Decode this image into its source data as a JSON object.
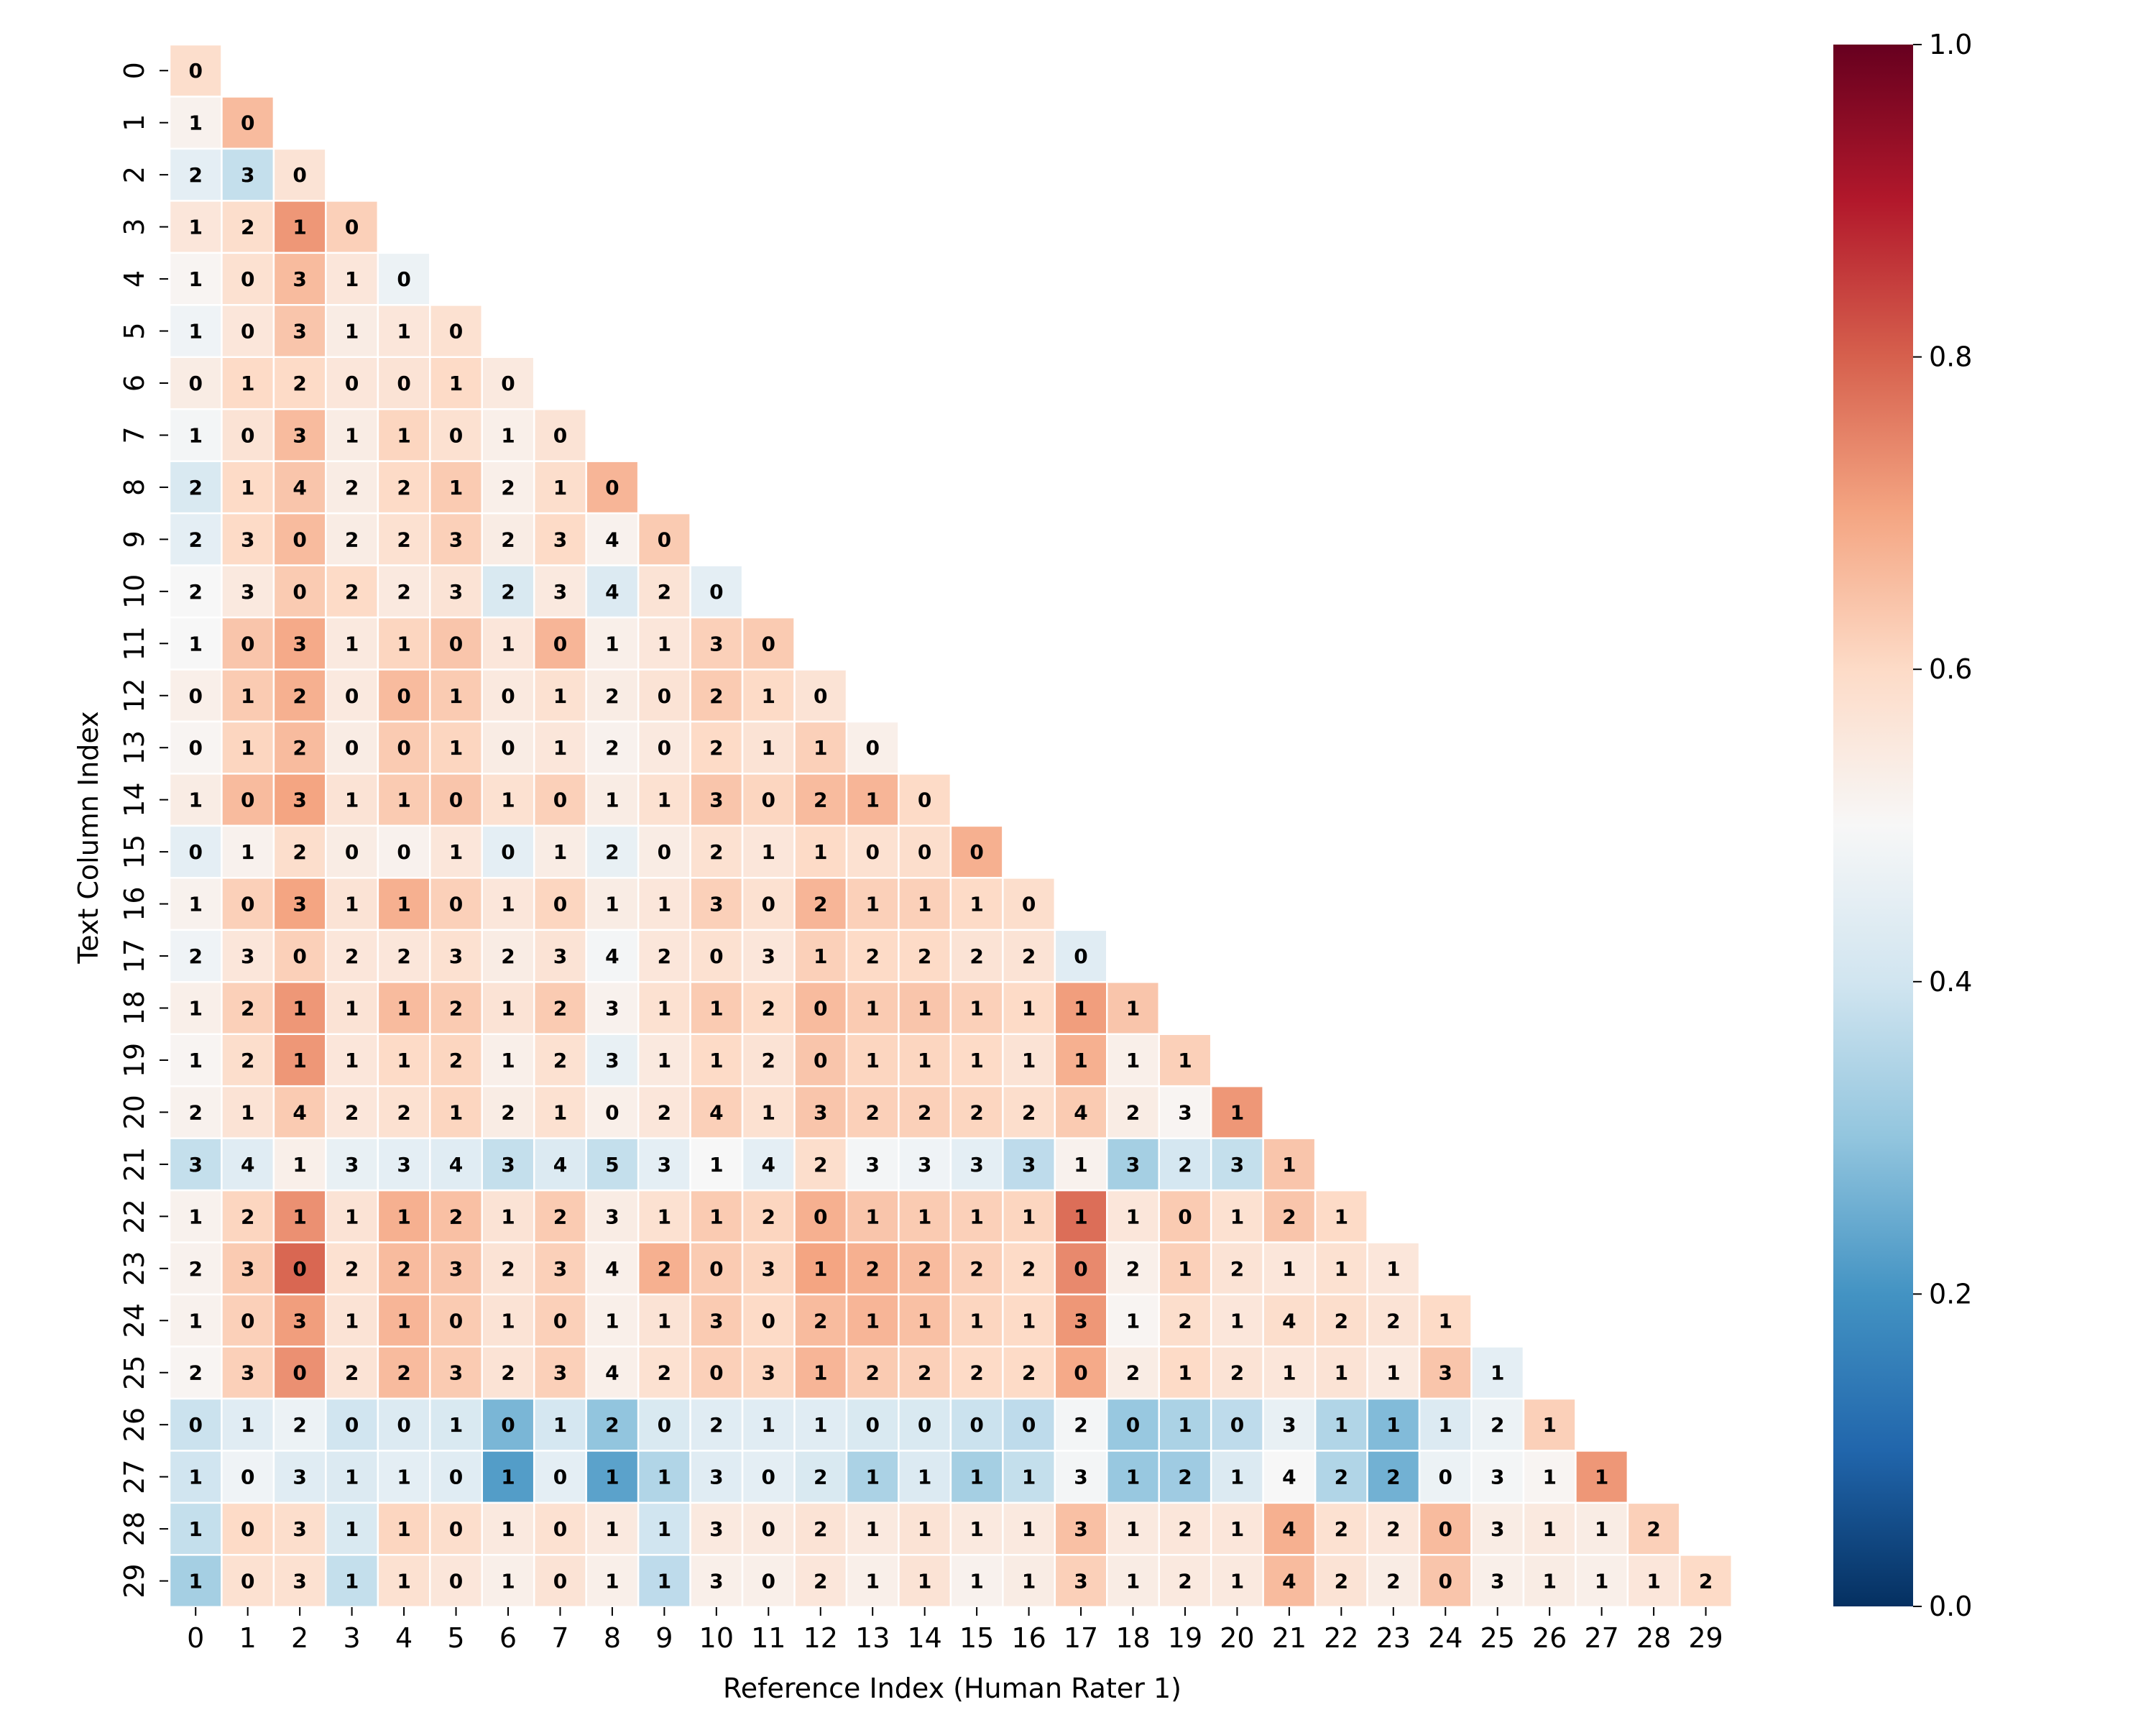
{
  "chart_data": {
    "type": "heatmap",
    "title": "",
    "xlabel": "Reference Index (Human Rater 1)",
    "ylabel": "Text Column Index",
    "x_tick_labels": [
      "0",
      "1",
      "2",
      "3",
      "4",
      "5",
      "6",
      "7",
      "8",
      "9",
      "10",
      "11",
      "12",
      "13",
      "14",
      "15",
      "16",
      "17",
      "18",
      "19",
      "20",
      "21",
      "22",
      "23",
      "24",
      "25",
      "26",
      "27",
      "28",
      "29"
    ],
    "y_tick_labels": [
      "0",
      "1",
      "2",
      "3",
      "4",
      "5",
      "6",
      "7",
      "8",
      "9",
      "10",
      "11",
      "12",
      "13",
      "14",
      "15",
      "16",
      "17",
      "18",
      "19",
      "20",
      "21",
      "22",
      "23",
      "24",
      "25",
      "26",
      "27",
      "28",
      "29"
    ],
    "mask": "upper-triangle",
    "colormap": "RdBu_r",
    "color_range": [
      0.0,
      1.0
    ],
    "colorbar_ticks": [
      "0.0",
      "0.2",
      "0.4",
      "0.6",
      "0.8",
      "1.0"
    ],
    "annotations": [
      [
        0
      ],
      [
        1,
        0
      ],
      [
        2,
        3,
        0
      ],
      [
        1,
        2,
        1,
        0
      ],
      [
        1,
        0,
        3,
        1,
        0
      ],
      [
        1,
        0,
        3,
        1,
        1,
        0
      ],
      [
        0,
        1,
        2,
        0,
        0,
        1,
        0
      ],
      [
        1,
        0,
        3,
        1,
        1,
        0,
        1,
        0
      ],
      [
        2,
        1,
        4,
        2,
        2,
        1,
        2,
        1,
        0
      ],
      [
        2,
        3,
        0,
        2,
        2,
        3,
        2,
        3,
        4,
        0
      ],
      [
        2,
        3,
        0,
        2,
        2,
        3,
        2,
        3,
        4,
        2,
        0
      ],
      [
        1,
        0,
        3,
        1,
        1,
        0,
        1,
        0,
        1,
        1,
        3,
        0
      ],
      [
        0,
        1,
        2,
        0,
        0,
        1,
        0,
        1,
        2,
        0,
        2,
        1,
        0
      ],
      [
        0,
        1,
        2,
        0,
        0,
        1,
        0,
        1,
        2,
        0,
        2,
        1,
        1,
        0
      ],
      [
        1,
        0,
        3,
        1,
        1,
        0,
        1,
        0,
        1,
        1,
        3,
        0,
        2,
        1,
        0
      ],
      [
        0,
        1,
        2,
        0,
        0,
        1,
        0,
        1,
        2,
        0,
        2,
        1,
        1,
        0,
        0,
        0
      ],
      [
        1,
        0,
        3,
        1,
        1,
        0,
        1,
        0,
        1,
        1,
        3,
        0,
        2,
        1,
        1,
        1,
        0
      ],
      [
        2,
        3,
        0,
        2,
        2,
        3,
        2,
        3,
        4,
        2,
        0,
        3,
        1,
        2,
        2,
        2,
        2,
        0
      ],
      [
        1,
        2,
        1,
        1,
        1,
        2,
        1,
        2,
        3,
        1,
        1,
        2,
        0,
        1,
        1,
        1,
        1,
        1,
        1
      ],
      [
        1,
        2,
        1,
        1,
        1,
        2,
        1,
        2,
        3,
        1,
        1,
        2,
        0,
        1,
        1,
        1,
        1,
        1,
        1,
        1
      ],
      [
        2,
        1,
        4,
        2,
        2,
        1,
        2,
        1,
        0,
        2,
        4,
        1,
        3,
        2,
        2,
        2,
        2,
        4,
        2,
        3,
        1
      ],
      [
        3,
        4,
        1,
        3,
        3,
        4,
        3,
        4,
        5,
        3,
        1,
        4,
        2,
        3,
        3,
        3,
        3,
        1,
        3,
        2,
        3,
        1
      ],
      [
        1,
        2,
        1,
        1,
        1,
        2,
        1,
        2,
        3,
        1,
        1,
        2,
        0,
        1,
        1,
        1,
        1,
        1,
        1,
        0,
        1,
        2,
        1
      ],
      [
        2,
        3,
        0,
        2,
        2,
        3,
        2,
        3,
        4,
        2,
        0,
        3,
        1,
        2,
        2,
        2,
        2,
        0,
        2,
        1,
        2,
        1,
        1,
        1
      ],
      [
        1,
        0,
        3,
        1,
        1,
        0,
        1,
        0,
        1,
        1,
        3,
        0,
        2,
        1,
        1,
        1,
        1,
        3,
        1,
        2,
        1,
        4,
        2,
        2,
        1
      ],
      [
        2,
        3,
        0,
        2,
        2,
        3,
        2,
        3,
        4,
        2,
        0,
        3,
        1,
        2,
        2,
        2,
        2,
        0,
        2,
        1,
        2,
        1,
        1,
        1,
        3,
        1
      ],
      [
        0,
        1,
        2,
        0,
        0,
        1,
        0,
        1,
        2,
        0,
        2,
        1,
        1,
        0,
        0,
        0,
        0,
        2,
        0,
        1,
        0,
        3,
        1,
        1,
        1,
        2,
        1
      ],
      [
        1,
        0,
        3,
        1,
        1,
        0,
        1,
        0,
        1,
        1,
        3,
        0,
        2,
        1,
        1,
        1,
        1,
        3,
        1,
        2,
        1,
        4,
        2,
        2,
        0,
        3,
        1,
        1
      ],
      [
        1,
        0,
        3,
        1,
        1,
        0,
        1,
        0,
        1,
        1,
        3,
        0,
        2,
        1,
        1,
        1,
        1,
        3,
        1,
        2,
        1,
        4,
        2,
        2,
        0,
        3,
        1,
        1,
        2
      ],
      [
        1,
        0,
        3,
        1,
        1,
        0,
        1,
        0,
        1,
        1,
        3,
        0,
        2,
        1,
        1,
        1,
        1,
        3,
        1,
        2,
        1,
        4,
        2,
        2,
        0,
        3,
        1,
        1,
        1,
        2
      ]
    ],
    "values": [
      [
        0.59
      ],
      [
        0.52,
        0.66
      ],
      [
        0.45,
        0.38,
        0.57
      ],
      [
        0.56,
        0.59,
        0.72,
        0.62
      ],
      [
        0.51,
        0.58,
        0.66,
        0.56,
        0.47
      ],
      [
        0.48,
        0.56,
        0.64,
        0.54,
        0.56,
        0.58
      ],
      [
        0.54,
        0.6,
        0.6,
        0.56,
        0.57,
        0.6,
        0.55
      ],
      [
        0.49,
        0.57,
        0.66,
        0.54,
        0.61,
        0.58,
        0.53,
        0.57
      ],
      [
        0.42,
        0.6,
        0.64,
        0.54,
        0.6,
        0.63,
        0.53,
        0.59,
        0.67
      ],
      [
        0.45,
        0.6,
        0.66,
        0.54,
        0.58,
        0.62,
        0.54,
        0.6,
        0.52,
        0.63
      ],
      [
        0.5,
        0.55,
        0.63,
        0.6,
        0.55,
        0.57,
        0.42,
        0.55,
        0.43,
        0.57,
        0.45
      ],
      [
        0.5,
        0.64,
        0.69,
        0.55,
        0.61,
        0.64,
        0.56,
        0.67,
        0.53,
        0.56,
        0.62,
        0.63
      ],
      [
        0.53,
        0.63,
        0.68,
        0.55,
        0.66,
        0.63,
        0.55,
        0.58,
        0.54,
        0.57,
        0.63,
        0.6,
        0.57
      ],
      [
        0.51,
        0.61,
        0.66,
        0.54,
        0.63,
        0.61,
        0.54,
        0.56,
        0.52,
        0.55,
        0.6,
        0.57,
        0.62,
        0.53
      ],
      [
        0.54,
        0.66,
        0.7,
        0.57,
        0.63,
        0.64,
        0.58,
        0.62,
        0.54,
        0.58,
        0.64,
        0.61,
        0.66,
        0.67,
        0.6
      ],
      [
        0.45,
        0.52,
        0.59,
        0.54,
        0.52,
        0.56,
        0.45,
        0.54,
        0.46,
        0.54,
        0.58,
        0.56,
        0.6,
        0.58,
        0.59,
        0.68
      ],
      [
        0.52,
        0.62,
        0.7,
        0.57,
        0.68,
        0.62,
        0.56,
        0.61,
        0.54,
        0.56,
        0.62,
        0.58,
        0.67,
        0.62,
        0.62,
        0.6,
        0.59
      ],
      [
        0.48,
        0.56,
        0.62,
        0.56,
        0.56,
        0.58,
        0.54,
        0.57,
        0.49,
        0.56,
        0.58,
        0.56,
        0.62,
        0.6,
        0.6,
        0.57,
        0.57,
        0.44
      ],
      [
        0.53,
        0.62,
        0.72,
        0.57,
        0.66,
        0.63,
        0.57,
        0.63,
        0.52,
        0.58,
        0.63,
        0.6,
        0.66,
        0.63,
        0.64,
        0.62,
        0.6,
        0.71,
        0.64
      ],
      [
        0.51,
        0.59,
        0.72,
        0.56,
        0.6,
        0.61,
        0.53,
        0.58,
        0.46,
        0.55,
        0.6,
        0.57,
        0.64,
        0.61,
        0.61,
        0.6,
        0.57,
        0.68,
        0.53,
        0.62
      ],
      [
        0.52,
        0.57,
        0.63,
        0.56,
        0.58,
        0.61,
        0.54,
        0.58,
        0.53,
        0.56,
        0.62,
        0.58,
        0.64,
        0.62,
        0.62,
        0.61,
        0.59,
        0.63,
        0.54,
        0.51,
        0.72
      ],
      [
        0.38,
        0.44,
        0.53,
        0.46,
        0.45,
        0.44,
        0.38,
        0.43,
        0.38,
        0.45,
        0.5,
        0.45,
        0.59,
        0.49,
        0.48,
        0.45,
        0.37,
        0.52,
        0.33,
        0.41,
        0.38,
        0.64
      ],
      [
        0.52,
        0.61,
        0.73,
        0.57,
        0.68,
        0.65,
        0.57,
        0.63,
        0.54,
        0.58,
        0.63,
        0.61,
        0.68,
        0.64,
        0.63,
        0.62,
        0.61,
        0.78,
        0.56,
        0.63,
        0.58,
        0.64,
        0.6
      ],
      [
        0.52,
        0.63,
        0.79,
        0.58,
        0.66,
        0.64,
        0.57,
        0.62,
        0.53,
        0.68,
        0.63,
        0.61,
        0.7,
        0.68,
        0.66,
        0.62,
        0.6,
        0.74,
        0.53,
        0.62,
        0.57,
        0.56,
        0.58,
        0.56
      ],
      [
        0.52,
        0.62,
        0.71,
        0.57,
        0.67,
        0.63,
        0.57,
        0.62,
        0.53,
        0.57,
        0.63,
        0.6,
        0.66,
        0.67,
        0.65,
        0.61,
        0.6,
        0.72,
        0.51,
        0.59,
        0.56,
        0.59,
        0.59,
        0.57,
        0.6
      ],
      [
        0.51,
        0.62,
        0.73,
        0.57,
        0.66,
        0.63,
        0.57,
        0.62,
        0.53,
        0.58,
        0.62,
        0.61,
        0.67,
        0.63,
        0.62,
        0.6,
        0.6,
        0.69,
        0.54,
        0.6,
        0.57,
        0.56,
        0.57,
        0.55,
        0.64,
        0.45
      ],
      [
        0.39,
        0.44,
        0.47,
        0.4,
        0.43,
        0.42,
        0.27,
        0.41,
        0.3,
        0.42,
        0.44,
        0.44,
        0.44,
        0.42,
        0.42,
        0.39,
        0.37,
        0.49,
        0.31,
        0.34,
        0.37,
        0.46,
        0.35,
        0.28,
        0.43,
        0.47,
        0.62
      ],
      [
        0.4,
        0.48,
        0.44,
        0.43,
        0.45,
        0.44,
        0.22,
        0.45,
        0.23,
        0.35,
        0.44,
        0.45,
        0.42,
        0.34,
        0.43,
        0.33,
        0.38,
        0.49,
        0.31,
        0.32,
        0.43,
        0.5,
        0.35,
        0.26,
        0.47,
        0.49,
        0.51,
        0.72
      ],
      [
        0.38,
        0.6,
        0.59,
        0.42,
        0.61,
        0.59,
        0.55,
        0.58,
        0.55,
        0.4,
        0.55,
        0.55,
        0.57,
        0.55,
        0.57,
        0.55,
        0.55,
        0.65,
        0.55,
        0.56,
        0.56,
        0.68,
        0.58,
        0.56,
        0.66,
        0.54,
        0.55,
        0.54,
        0.62
      ],
      [
        0.33,
        0.58,
        0.58,
        0.38,
        0.58,
        0.56,
        0.53,
        0.57,
        0.53,
        0.37,
        0.53,
        0.53,
        0.56,
        0.53,
        0.57,
        0.52,
        0.54,
        0.62,
        0.54,
        0.55,
        0.55,
        0.66,
        0.57,
        0.54,
        0.64,
        0.53,
        0.54,
        0.53,
        0.56,
        0.6
      ]
    ]
  }
}
